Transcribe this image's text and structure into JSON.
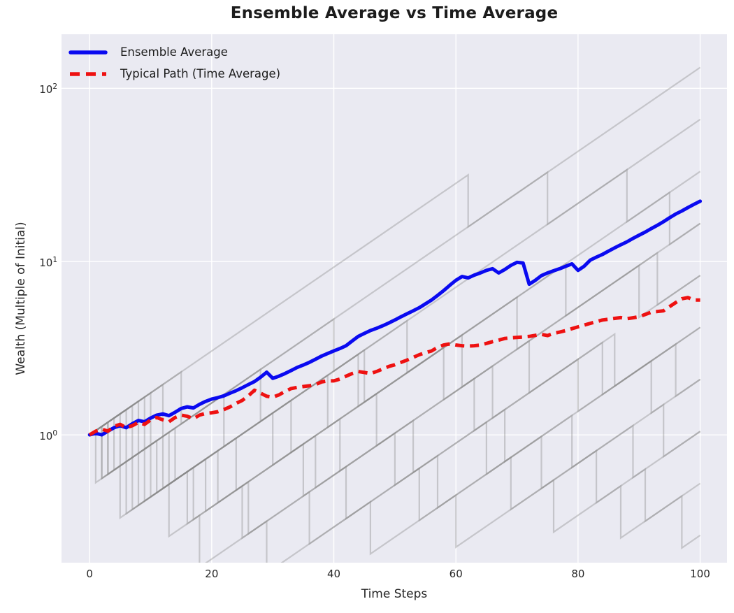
{
  "title": "Ensemble Average vs Time Average",
  "axes": {
    "xlabel": "Time Steps",
    "ylabel": "Wealth (Multiple of Initial)",
    "x_tick_values": [
      0,
      20,
      40,
      60,
      80,
      100
    ],
    "y_tick_base": "10",
    "y_tick_exponents": [
      2,
      1,
      0
    ]
  },
  "legend": {
    "position": "upper left",
    "items": [
      {
        "label": "Ensemble Average",
        "color": "#0a0af0",
        "style": "solid"
      },
      {
        "label": "Typical Path (Time Average)",
        "color": "#ee1111",
        "style": "dashed"
      }
    ]
  },
  "colors": {
    "figure_background": "#ffffff",
    "axes_background": "#eaeaf2",
    "grid": "#ffffff",
    "ensemble_line": "#0a0af0",
    "typical_line": "#ee1111",
    "individual_paths": "#8a8a8a",
    "text": "#262626"
  },
  "chart_data": {
    "type": "line",
    "yscale": "log",
    "title": "Ensemble Average vs Time Average",
    "xlabel": "Time Steps",
    "ylabel": "Wealth (Multiple of Initial)",
    "xlim": [
      -4.6,
      104.4
    ],
    "ylim": [
      0.183,
      205
    ],
    "grid": true,
    "legend_position": "upper left",
    "x_start": 0,
    "x_end": 100,
    "x_step": 1,
    "series": [
      {
        "name": "Ensemble Average",
        "color": "#0a0af0",
        "width": 5,
        "dash": "none",
        "values": [
          1.0,
          1.02,
          1.0,
          1.05,
          1.1,
          1.13,
          1.1,
          1.16,
          1.21,
          1.19,
          1.25,
          1.3,
          1.32,
          1.29,
          1.35,
          1.42,
          1.45,
          1.43,
          1.5,
          1.56,
          1.61,
          1.64,
          1.68,
          1.74,
          1.8,
          1.87,
          1.95,
          2.03,
          2.15,
          2.3,
          2.12,
          2.18,
          2.26,
          2.35,
          2.45,
          2.53,
          2.62,
          2.73,
          2.85,
          2.95,
          3.05,
          3.15,
          3.27,
          3.48,
          3.7,
          3.85,
          4.0,
          4.12,
          4.26,
          4.42,
          4.6,
          4.8,
          5.0,
          5.2,
          5.42,
          5.7,
          6.0,
          6.38,
          6.8,
          7.3,
          7.8,
          8.2,
          8.05,
          8.35,
          8.6,
          8.9,
          9.1,
          8.6,
          9.0,
          9.5,
          9.9,
          9.8,
          7.4,
          7.8,
          8.3,
          8.6,
          8.85,
          9.1,
          9.4,
          9.7,
          8.9,
          9.4,
          10.2,
          10.6,
          11.0,
          11.5,
          12.0,
          12.5,
          13.0,
          13.6,
          14.2,
          14.8,
          15.5,
          16.2,
          17.0,
          17.9,
          18.8,
          19.6,
          20.5,
          21.4,
          22.3
        ]
      },
      {
        "name": "Typical Path (Time Average)",
        "color": "#ee1111",
        "width": 5,
        "dash": "13 8",
        "values": [
          1.0,
          1.05,
          1.08,
          1.05,
          1.12,
          1.15,
          1.1,
          1.13,
          1.18,
          1.15,
          1.22,
          1.26,
          1.22,
          1.19,
          1.26,
          1.3,
          1.28,
          1.24,
          1.3,
          1.33,
          1.34,
          1.36,
          1.4,
          1.45,
          1.52,
          1.58,
          1.68,
          1.81,
          1.74,
          1.67,
          1.65,
          1.7,
          1.78,
          1.85,
          1.88,
          1.9,
          1.92,
          1.95,
          2.02,
          2.05,
          2.05,
          2.1,
          2.18,
          2.26,
          2.32,
          2.29,
          2.26,
          2.32,
          2.4,
          2.48,
          2.54,
          2.62,
          2.7,
          2.8,
          2.9,
          2.98,
          3.05,
          3.2,
          3.3,
          3.35,
          3.3,
          3.27,
          3.25,
          3.27,
          3.3,
          3.37,
          3.45,
          3.52,
          3.6,
          3.63,
          3.65,
          3.67,
          3.7,
          3.75,
          3.8,
          3.74,
          3.85,
          3.92,
          4.0,
          4.1,
          4.2,
          4.3,
          4.4,
          4.5,
          4.6,
          4.65,
          4.7,
          4.75,
          4.68,
          4.74,
          4.8,
          4.95,
          5.1,
          5.15,
          5.2,
          5.5,
          5.8,
          6.1,
          6.2,
          6.0,
          6.0
        ]
      }
    ],
    "individual_paths": {
      "description": "Faint gray individual wealth paths: constant multiplicative growth per step with occasional crash (about 50% loss), straight lines with vertical drops on the log scale",
      "count": 15,
      "start_value": 1.0,
      "growth_log10_per_step": 0.0242,
      "crash_drop_log10": 0.3,
      "color": "#8a8a8a",
      "opacity": 0.38,
      "width": 2.2,
      "crash_times": [
        [
          62
        ],
        [
          15,
          75
        ],
        [
          8,
          40,
          88
        ],
        [
          3,
          9,
          52,
          95
        ],
        [
          12,
          13,
          44,
          78
        ],
        [
          5,
          22,
          39,
          61,
          90
        ],
        [
          2,
          7,
          33,
          70,
          93
        ],
        [
          10,
          28,
          45,
          58,
          72,
          86
        ],
        [
          4,
          6,
          19,
          41,
          66,
          84
        ],
        [
          1,
          11,
          24,
          37,
          53,
          68,
          92
        ],
        [
          9,
          14,
          30,
          47,
          63,
          80,
          96
        ],
        [
          3,
          8,
          16,
          26,
          42,
          57,
          74,
          89
        ],
        [
          6,
          12,
          21,
          35,
          50,
          65,
          79,
          94
        ],
        [
          2,
          5,
          13,
          18,
          29,
          46,
          60,
          76,
          87,
          97
        ],
        [
          7,
          10,
          17,
          25,
          36,
          54,
          69,
          83,
          91
        ]
      ]
    }
  }
}
